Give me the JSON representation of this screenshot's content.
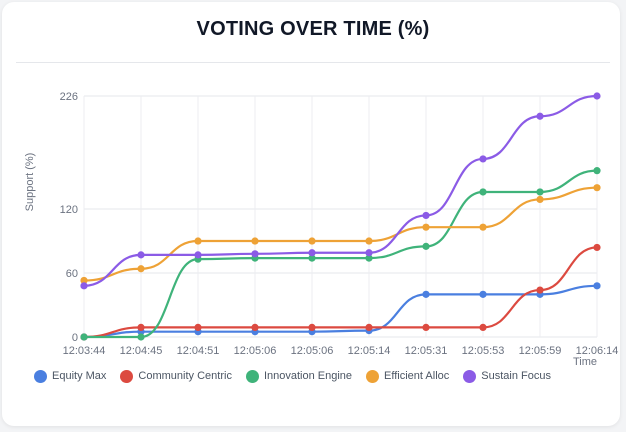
{
  "page": {
    "title": "VOTING OVER TIME (%)"
  },
  "chart_data": {
    "type": "line",
    "title": "VOTING OVER TIME (%)",
    "xlabel": "Time",
    "ylabel": "Support (%)",
    "ylim": [
      0,
      226
    ],
    "yticks": [
      0,
      60,
      120,
      226
    ],
    "grid": true,
    "legend_position": "bottom",
    "categories": [
      "12:03:44",
      "12:04:45",
      "12:04:51",
      "12:05:06",
      "12:05:06",
      "12:05:14",
      "12:05:31",
      "12:05:53",
      "12:05:59",
      "12:06:14"
    ],
    "series": [
      {
        "name": "Equity Max",
        "color": "#4a7fe0",
        "values": [
          0,
          5,
          5,
          5,
          5,
          6,
          40,
          40,
          40,
          48
        ]
      },
      {
        "name": "Community Centric",
        "color": "#dc4a40",
        "values": [
          0,
          9,
          9,
          9,
          9,
          9,
          9,
          9,
          44,
          84
        ]
      },
      {
        "name": "Innovation Engine",
        "color": "#3fb37a",
        "values": [
          0,
          0,
          73,
          74,
          74,
          74,
          85,
          136,
          136,
          156
        ]
      },
      {
        "name": "Efficient Alloc",
        "color": "#eea236",
        "values": [
          53,
          64,
          90,
          90,
          90,
          90,
          103,
          103,
          129,
          140
        ]
      },
      {
        "name": "Sustain Focus",
        "color": "#8b5be6",
        "values": [
          48,
          77,
          77,
          78,
          79,
          79,
          114,
          167,
          207,
          226
        ]
      }
    ]
  }
}
